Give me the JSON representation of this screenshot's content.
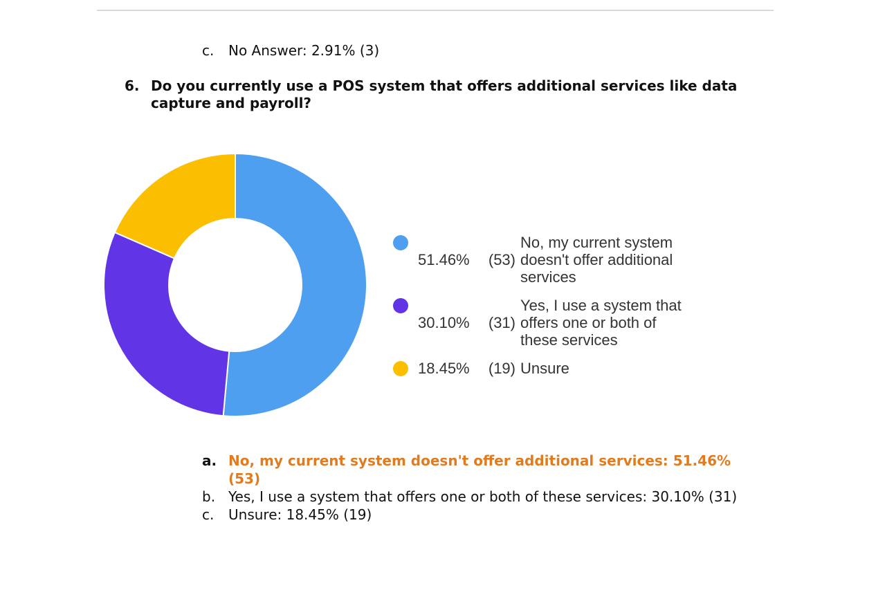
{
  "previous_item": {
    "marker": "c.",
    "text": "No Answer: 2.91% (3)"
  },
  "question": {
    "number": "6.",
    "text": "Do you currently use a POS system that offers additional services like data capture and payroll?"
  },
  "chart_data": {
    "type": "pie",
    "donut": true,
    "legend_position": "right",
    "slices": [
      {
        "label_lines": [
          "No, my current system",
          "doesn't offer additional",
          "services"
        ],
        "percent_text": "51.46%",
        "count_text": "(53)",
        "value": 53,
        "color": "#4f9ff0"
      },
      {
        "label_lines": [
          "Yes, I use a system that",
          "offers one or both of",
          "these services"
        ],
        "percent_text": "30.10%",
        "count_text": "(31)",
        "value": 31,
        "color": "#6135e6"
      },
      {
        "label_lines": [
          "Unsure"
        ],
        "percent_text": "18.45%",
        "count_text": "(19)",
        "value": 19,
        "color": "#fbbe00"
      }
    ]
  },
  "answers": [
    {
      "marker": "a.",
      "text": "No, my current system doesn't offer additional services: 51.46% (53)",
      "highlight": true
    },
    {
      "marker": "b.",
      "text": "Yes, I use a system that offers one or both of these services: 30.10% (31)",
      "highlight": false
    },
    {
      "marker": "c.",
      "text": "Unsure: 18.45% (19)",
      "highlight": false
    }
  ],
  "colors": {
    "highlight": "#e07b1f",
    "divider": "#d9d9d9"
  }
}
